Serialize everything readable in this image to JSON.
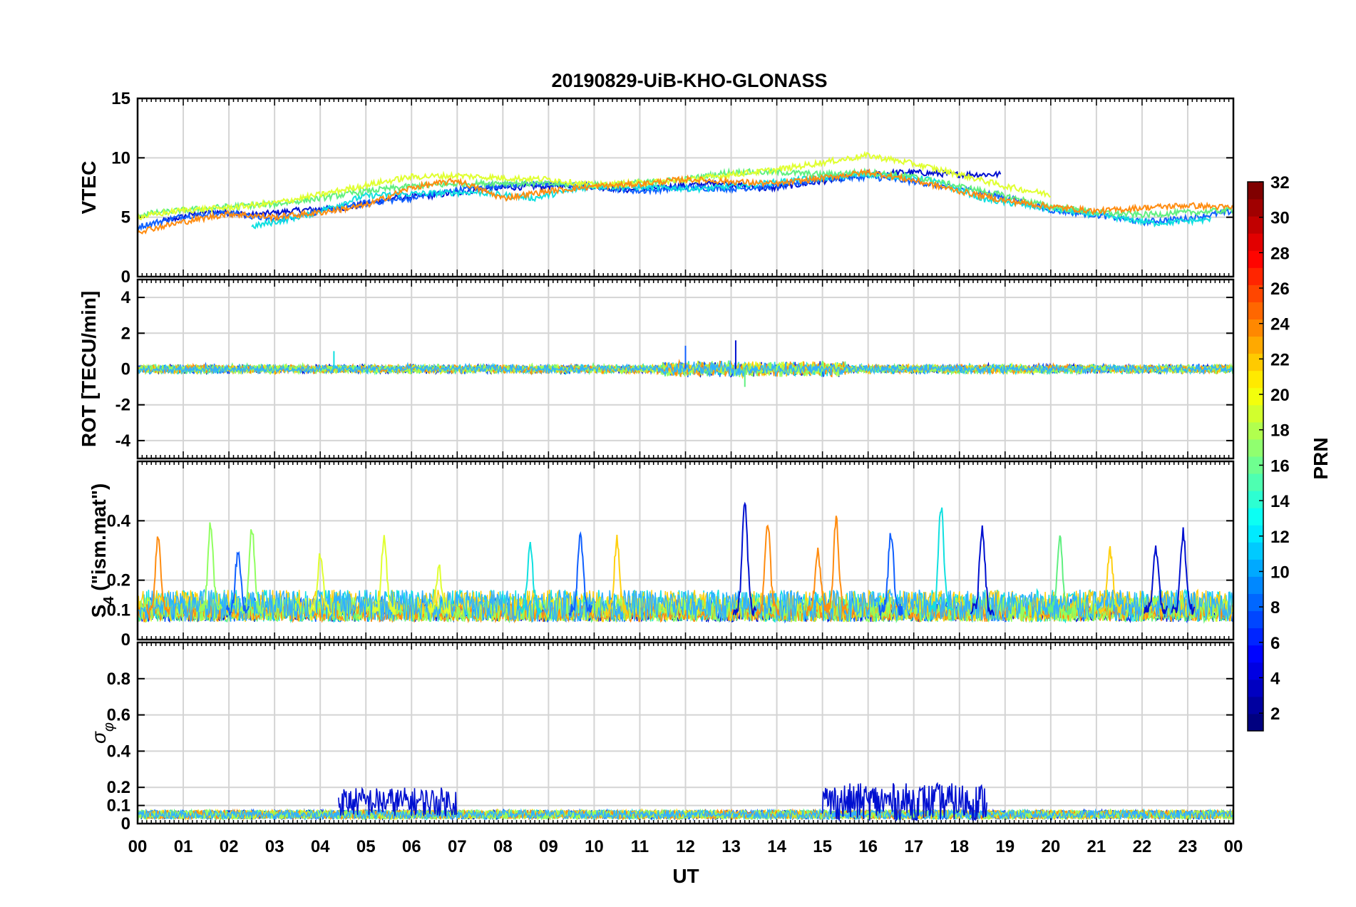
{
  "chart_data": {
    "type": "line",
    "title": "20190829-UiB-KHO-GLONASS",
    "xlabel": "UT",
    "x_tick_labels": [
      "00",
      "01",
      "02",
      "03",
      "04",
      "05",
      "06",
      "07",
      "08",
      "09",
      "10",
      "11",
      "12",
      "13",
      "14",
      "15",
      "16",
      "17",
      "18",
      "19",
      "20",
      "21",
      "22",
      "23",
      "00"
    ],
    "xlim_hours": [
      0,
      24
    ],
    "grid": true,
    "colorbar": {
      "label": "PRN",
      "range": [
        1,
        32
      ],
      "tick_labels": [
        "2",
        "4",
        "6",
        "8",
        "10",
        "12",
        "14",
        "16",
        "18",
        "20",
        "22",
        "24",
        "26",
        "28",
        "30",
        "32"
      ],
      "colormap": "jet"
    },
    "panels": [
      {
        "ylabel": "VTEC",
        "ylim": [
          0,
          15
        ],
        "y_ticks": [
          0,
          5,
          10,
          15
        ],
        "y_tick_labels": [
          "0",
          "5",
          "10",
          "15"
        ],
        "series_summary": [
          {
            "name": "PRN 2",
            "color": "#0010d0",
            "start_h": 0.5,
            "end_h": 18.9,
            "values": [
              4.6,
              5.5,
              5.2,
              5.6,
              5.8,
              6.6,
              6.9,
              7.4,
              7.6,
              7.7,
              7.3,
              7.6,
              7.9,
              7.4,
              7.9,
              8.6,
              8.8,
              8.6,
              8.6
            ]
          },
          {
            "name": "PRN 6",
            "color": "#1060ff",
            "start_h": 0.0,
            "end_h": 24.0,
            "values": [
              4.2,
              5.1,
              5.4,
              4.8,
              5.5,
              6.2,
              6.6,
              7.3,
              7.7,
              7.8,
              7.6,
              7.2,
              7.5,
              7.4,
              7.6,
              8.2,
              8.4,
              8.0,
              7.4,
              6.7,
              5.6,
              5.2,
              4.6,
              4.9,
              5.5
            ]
          },
          {
            "name": "PRN 12",
            "color": "#10e0e0",
            "start_h": 2.5,
            "end_h": 23.5,
            "values": [
              4.2,
              5.2,
              6.8,
              7.0,
              7.1,
              6.6,
              7.6,
              7.5,
              7.4,
              7.8,
              8.3,
              8.6,
              8.2,
              6.5,
              5.8,
              5.2,
              4.5,
              4.8
            ]
          },
          {
            "name": "PRN 16",
            "color": "#60f080",
            "start_h": 0.0,
            "end_h": 24.0,
            "values": [
              5.2,
              5.6,
              5.9,
              6.1,
              6.6,
              7.2,
              7.6,
              7.8,
              7.9,
              7.8,
              7.7,
              7.9,
              8.2,
              8.8,
              8.8,
              8.6,
              8.8,
              8.4,
              7.6,
              6.8,
              5.9,
              5.4,
              5.2,
              5.4,
              5.6
            ]
          },
          {
            "name": "PRN 19",
            "color": "#e0ff30",
            "start_h": 0.0,
            "end_h": 20.0,
            "values": [
              5.0,
              5.6,
              5.8,
              6.2,
              6.9,
              7.7,
              8.4,
              8.5,
              8.3,
              8.2,
              7.7,
              7.9,
              8.1,
              8.6,
              9.0,
              9.6,
              10.2,
              9.5,
              8.6,
              7.6,
              6.9
            ]
          },
          {
            "name": "PRN 23",
            "color": "#ff8c10",
            "start_h": 0.0,
            "end_h": 24.0,
            "values": [
              3.8,
              4.6,
              5.3,
              5.0,
              5.4,
              6.0,
              7.5,
              8.1,
              6.6,
              7.2,
              7.6,
              7.8,
              8.2,
              8.0,
              7.8,
              8.3,
              8.8,
              8.1,
              7.2,
              6.4,
              5.9,
              5.5,
              5.8,
              6.0,
              5.8
            ]
          }
        ]
      },
      {
        "ylabel": "ROT [TECU/min]",
        "ylim": [
          -5,
          5
        ],
        "y_ticks": [
          -4,
          -2,
          0,
          2,
          4
        ],
        "y_tick_labels": [
          "-4",
          "-2",
          "0",
          "2",
          "4"
        ],
        "level": 0,
        "noise_amplitude": 0.4,
        "peak_values": [
          1.6,
          1.3,
          1.0,
          -1.0
        ]
      },
      {
        "ylabel_main": "S",
        "ylabel_sub": "4",
        "ylabel_rest": " (\"ism.mat\")",
        "ylim": [
          0,
          0.6
        ],
        "y_ticks": [
          0,
          0.1,
          0.2,
          0.4
        ],
        "y_tick_labels": [
          "0",
          "0.1",
          "0.2",
          "0.4"
        ],
        "baseline": 0.06,
        "spikes": [
          {
            "t": 0.45,
            "v": 0.35,
            "color": "#ff8c10"
          },
          {
            "t": 1.6,
            "v": 0.39,
            "color": "#90ff60"
          },
          {
            "t": 2.5,
            "v": 0.38,
            "color": "#90ff60"
          },
          {
            "t": 2.2,
            "v": 0.3,
            "color": "#1060ff"
          },
          {
            "t": 4.0,
            "v": 0.29,
            "color": "#e0ff30"
          },
          {
            "t": 5.4,
            "v": 0.34,
            "color": "#e0ff30"
          },
          {
            "t": 6.6,
            "v": 0.24,
            "color": "#e0ff30"
          },
          {
            "t": 8.6,
            "v": 0.31,
            "color": "#10e0e0"
          },
          {
            "t": 9.7,
            "v": 0.35,
            "color": "#1060ff"
          },
          {
            "t": 10.5,
            "v": 0.34,
            "color": "#ffd010"
          },
          {
            "t": 13.3,
            "v": 0.46,
            "color": "#0010d0"
          },
          {
            "t": 13.8,
            "v": 0.39,
            "color": "#ff8c10"
          },
          {
            "t": 14.9,
            "v": 0.3,
            "color": "#ff8c10"
          },
          {
            "t": 15.3,
            "v": 0.4,
            "color": "#ff8c10"
          },
          {
            "t": 16.5,
            "v": 0.36,
            "color": "#1060ff"
          },
          {
            "t": 17.6,
            "v": 0.45,
            "color": "#10e0e0"
          },
          {
            "t": 18.5,
            "v": 0.38,
            "color": "#0010d0"
          },
          {
            "t": 20.2,
            "v": 0.34,
            "color": "#60f080"
          },
          {
            "t": 21.3,
            "v": 0.3,
            "color": "#ffd010"
          },
          {
            "t": 22.3,
            "v": 0.31,
            "color": "#0010d0"
          },
          {
            "t": 22.9,
            "v": 0.36,
            "color": "#0010d0"
          }
        ]
      },
      {
        "ylabel": "σ φ",
        "ylabel_main": "σ",
        "ylabel_sub": "φ",
        "ylim": [
          0,
          1
        ],
        "y_ticks": [
          0,
          0.1,
          0.2,
          0.4,
          0.6,
          0.8
        ],
        "y_tick_labels": [
          "0",
          "0.1",
          "0.2",
          "0.4",
          "0.6",
          "0.8"
        ],
        "baseline": 0.04,
        "elevated_segments": [
          {
            "start_h": 4.4,
            "end_h": 7.0,
            "level": 0.12,
            "max": 0.22,
            "color": "#0010d0"
          },
          {
            "start_h": 15.0,
            "end_h": 18.6,
            "level": 0.12,
            "max": 0.25,
            "color": "#0010d0"
          }
        ]
      }
    ]
  }
}
